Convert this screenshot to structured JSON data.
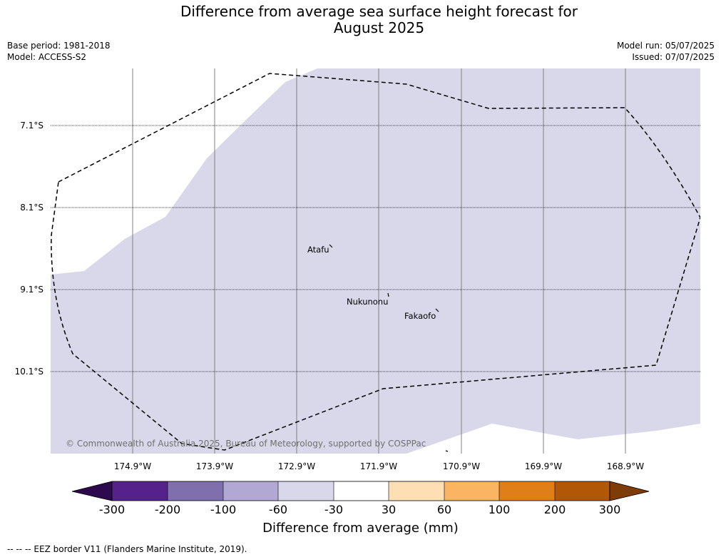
{
  "title_line1": "Difference from average sea surface height forecast for",
  "title_line2": "August 2025",
  "meta": {
    "base_period": "Base period: 1981-2018",
    "model": "Model: ACCESS-S2",
    "model_run": "Model run: 05/07/2025",
    "issued": "Issued: 07/07/2025"
  },
  "map": {
    "lat_ticks": [
      "7.1°S",
      "8.1°S",
      "9.1°S",
      "10.1°S"
    ],
    "lon_ticks": [
      "174.9°W",
      "173.9°W",
      "172.9°W",
      "171.9°W",
      "170.9°W",
      "169.9°W",
      "168.9°W"
    ],
    "places": [
      "Atafu",
      "Nukunonu",
      "Fakaofo"
    ],
    "copyright": "© Commonwealth of Australia 2025, Bureau of Meteorology, supported by COSPPac",
    "fill_color": "#d8d8ea",
    "background_color": "#ffffff"
  },
  "colorbar": {
    "ticks": [
      "-300",
      "-200",
      "-100",
      "-60",
      "-30",
      "30",
      "60",
      "100",
      "200",
      "300"
    ],
    "colors": [
      "#2d0a4e",
      "#54228a",
      "#7f6fad",
      "#b1a9d3",
      "#d8d8ea",
      "#ffffff",
      "#fedfb4",
      "#fbb562",
      "#e07f18",
      "#b15708",
      "#7e3c09"
    ],
    "label": "Difference from average (mm)"
  },
  "footnote": "--  --  -- EEZ border V11 (Flanders Marine Institute, 2019)."
}
